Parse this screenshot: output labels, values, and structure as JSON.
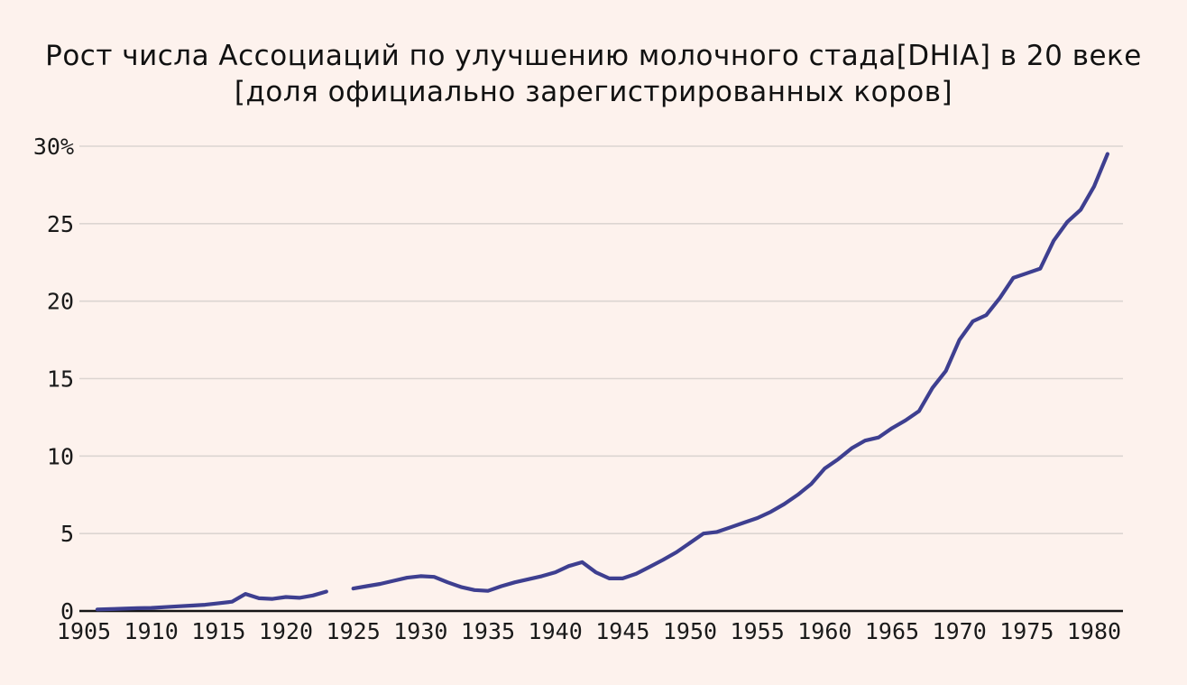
{
  "chart": {
    "title_line1": "Рост числа Ассоциаций по улучшению молочного стада[DHIA] в 20 веке",
    "title_line2": "[доля официально зарегистрированных коров]"
  },
  "colors": {
    "background": "#fdf2ed",
    "line": "#3e3f90",
    "gridline": "#dcd5d1",
    "axis": "#151515",
    "text": "#1a1a1a",
    "title_text": "#111111"
  },
  "chart_data": {
    "type": "line",
    "title": "Рост числа Ассоциаций по улучшению молочного стада[DHIA] в 20 веке",
    "subtitle": "[доля официально зарегистрированных коров]",
    "xlabel": "",
    "ylabel": "",
    "grid": true,
    "legend": false,
    "xlim": [
      1904.7,
      1982.3
    ],
    "ylim": [
      0,
      30
    ],
    "y_ticks": [
      {
        "value": 0,
        "label": "0"
      },
      {
        "value": 5,
        "label": "5"
      },
      {
        "value": 10,
        "label": "10"
      },
      {
        "value": 15,
        "label": "15"
      },
      {
        "value": 20,
        "label": "20"
      },
      {
        "value": 25,
        "label": "25"
      },
      {
        "value": 30,
        "label": "30%"
      }
    ],
    "x_ticks": [
      {
        "value": 1905,
        "label": "1905"
      },
      {
        "value": 1910,
        "label": "1910"
      },
      {
        "value": 1915,
        "label": "1915"
      },
      {
        "value": 1920,
        "label": "1920"
      },
      {
        "value": 1925,
        "label": "1925"
      },
      {
        "value": 1930,
        "label": "1930"
      },
      {
        "value": 1935,
        "label": "1935"
      },
      {
        "value": 1940,
        "label": "1940"
      },
      {
        "value": 1945,
        "label": "1945"
      },
      {
        "value": 1950,
        "label": "1950"
      },
      {
        "value": 1955,
        "label": "1955"
      },
      {
        "value": 1960,
        "label": "1960"
      },
      {
        "value": 1965,
        "label": "1965"
      },
      {
        "value": 1970,
        "label": "1970"
      },
      {
        "value": 1975,
        "label": "1975"
      },
      {
        "value": 1980,
        "label": "1980"
      }
    ],
    "series": [
      {
        "points": [
          [
            1906,
            0.1
          ],
          [
            1907,
            0.12
          ],
          [
            1908,
            0.15
          ],
          [
            1909,
            0.18
          ],
          [
            1910,
            0.2
          ],
          [
            1911,
            0.25
          ],
          [
            1912,
            0.3
          ],
          [
            1913,
            0.35
          ],
          [
            1914,
            0.4
          ],
          [
            1915,
            0.5
          ],
          [
            1916,
            0.6
          ],
          [
            1917,
            1.1
          ],
          [
            1918,
            0.82
          ],
          [
            1919,
            0.78
          ],
          [
            1920,
            0.9
          ],
          [
            1921,
            0.85
          ],
          [
            1922,
            1.0
          ],
          [
            1923,
            1.25
          ],
          [
            1924,
            null
          ],
          [
            1925,
            1.45
          ],
          [
            1926,
            1.6
          ],
          [
            1927,
            1.75
          ],
          [
            1928,
            1.95
          ],
          [
            1929,
            2.15
          ],
          [
            1930,
            2.25
          ],
          [
            1931,
            2.2
          ],
          [
            1932,
            1.85
          ],
          [
            1933,
            1.55
          ],
          [
            1934,
            1.35
          ],
          [
            1935,
            1.3
          ],
          [
            1936,
            1.6
          ],
          [
            1937,
            1.85
          ],
          [
            1938,
            2.05
          ],
          [
            1939,
            2.25
          ],
          [
            1940,
            2.5
          ],
          [
            1941,
            2.9
          ],
          [
            1942,
            3.15
          ],
          [
            1943,
            2.5
          ],
          [
            1944,
            2.1
          ],
          [
            1945,
            2.1
          ],
          [
            1946,
            2.4
          ],
          [
            1947,
            2.85
          ],
          [
            1948,
            3.3
          ],
          [
            1949,
            3.8
          ],
          [
            1950,
            4.4
          ],
          [
            1951,
            5.0
          ],
          [
            1952,
            5.1
          ],
          [
            1953,
            5.4
          ],
          [
            1954,
            5.7
          ],
          [
            1955,
            6.0
          ],
          [
            1956,
            6.4
          ],
          [
            1957,
            6.9
          ],
          [
            1958,
            7.5
          ],
          [
            1959,
            8.2
          ],
          [
            1960,
            9.2
          ],
          [
            1961,
            9.8
          ],
          [
            1962,
            10.5
          ],
          [
            1963,
            11.0
          ],
          [
            1964,
            11.2
          ],
          [
            1965,
            11.8
          ],
          [
            1966,
            12.3
          ],
          [
            1967,
            12.9
          ],
          [
            1968,
            14.4
          ],
          [
            1969,
            15.5
          ],
          [
            1970,
            17.5
          ],
          [
            1971,
            18.7
          ],
          [
            1972,
            19.1
          ],
          [
            1973,
            20.2
          ],
          [
            1974,
            21.5
          ],
          [
            1975,
            21.8
          ],
          [
            1976,
            22.1
          ],
          [
            1977,
            23.9
          ],
          [
            1978,
            25.1
          ],
          [
            1979,
            25.9
          ],
          [
            1980,
            27.4
          ],
          [
            1981,
            29.5
          ]
        ]
      }
    ]
  }
}
